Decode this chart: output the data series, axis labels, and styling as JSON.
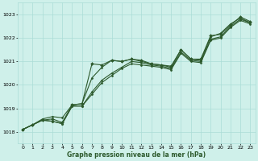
{
  "xlabel": "Graphe pression niveau de la mer (hPa)",
  "xlim": [
    -0.5,
    23.5
  ],
  "ylim": [
    1017.5,
    1023.5
  ],
  "yticks": [
    1018,
    1019,
    1020,
    1021,
    1022,
    1023
  ],
  "xticks": [
    0,
    1,
    2,
    3,
    4,
    5,
    6,
    7,
    8,
    9,
    10,
    11,
    12,
    13,
    14,
    15,
    16,
    17,
    18,
    19,
    20,
    21,
    22,
    23
  ],
  "bg_color": "#cff0ea",
  "grid_color": "#aaddd6",
  "line_color": "#2d5a2d",
  "lines": [
    [
      1018.1,
      1018.3,
      1018.5,
      1018.55,
      1018.4,
      1019.15,
      1019.2,
      1020.9,
      1020.85,
      1021.05,
      1021.0,
      1021.1,
      1021.05,
      1020.9,
      1020.85,
      1020.8,
      1021.5,
      1021.1,
      1021.1,
      1022.1,
      1022.15,
      1022.55,
      1022.9,
      1022.7
    ],
    [
      1018.1,
      1018.3,
      1018.5,
      1018.45,
      1018.35,
      1019.1,
      1019.1,
      1019.7,
      1020.2,
      1020.5,
      1020.75,
      1021.0,
      1020.95,
      1020.85,
      1020.8,
      1020.7,
      1021.4,
      1021.05,
      1021.0,
      1021.95,
      1022.05,
      1022.5,
      1022.8,
      1022.65
    ],
    [
      1018.1,
      1018.3,
      1018.5,
      1018.45,
      1018.35,
      1019.1,
      1019.1,
      1019.6,
      1020.1,
      1020.4,
      1020.7,
      1020.9,
      1020.85,
      1020.8,
      1020.75,
      1020.65,
      1021.35,
      1021.0,
      1020.95,
      1021.9,
      1022.0,
      1022.45,
      1022.75,
      1022.6
    ],
    [
      1018.1,
      1018.3,
      1018.55,
      1018.65,
      1018.6,
      1019.15,
      1019.2,
      1020.3,
      1020.75,
      1021.05,
      1021.0,
      1021.1,
      1021.0,
      1020.9,
      1020.85,
      1020.75,
      1021.5,
      1021.1,
      1021.05,
      1022.05,
      1022.2,
      1022.6,
      1022.85,
      1022.65
    ]
  ],
  "marker_line_idx": 0,
  "figsize": [
    3.2,
    2.0
  ],
  "dpi": 100
}
